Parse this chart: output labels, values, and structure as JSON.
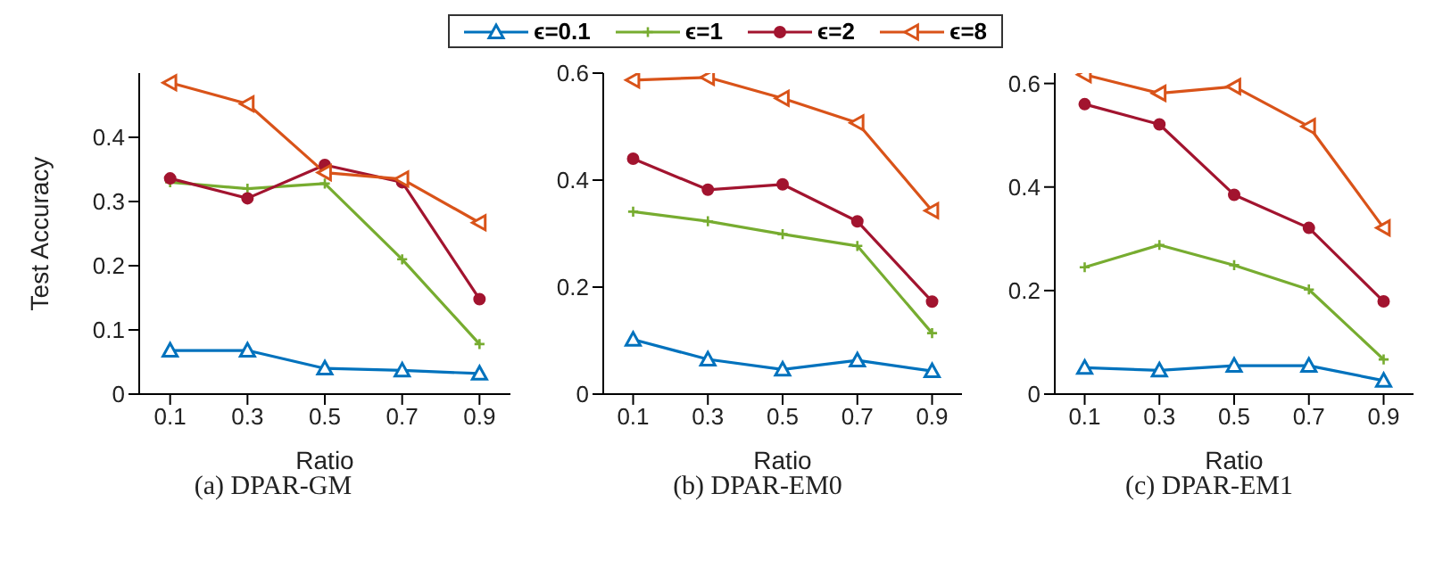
{
  "chart_data": [
    {
      "type": "line",
      "title": "(a)  DPAR-GM",
      "xlabel": "Ratio",
      "ylabel": "Test Accuracy",
      "x": [
        0.1,
        0.3,
        0.5,
        0.7,
        0.9
      ],
      "xlim": [
        0.02,
        0.98
      ],
      "xticks": [
        0.1,
        0.3,
        0.5,
        0.7,
        0.9
      ],
      "ylim": [
        0,
        0.5
      ],
      "yticks": [
        0,
        0.1,
        0.2,
        0.3,
        0.4
      ],
      "legend": "top",
      "series": [
        {
          "name": "ϵ=0.1",
          "color": "#0072bd",
          "marker": "triangle",
          "values": [
            0.068,
            0.068,
            0.04,
            0.037,
            0.032
          ]
        },
        {
          "name": "ϵ=1",
          "color": "#77ac30",
          "marker": "cross",
          "values": [
            0.33,
            0.32,
            0.328,
            0.21,
            0.078
          ]
        },
        {
          "name": "ϵ=2",
          "color": "#a2142f",
          "marker": "circle",
          "values": [
            0.336,
            0.305,
            0.357,
            0.33,
            0.148
          ]
        },
        {
          "name": "ϵ=8",
          "color": "#d95319",
          "marker": "triangle-left",
          "values": [
            0.485,
            0.452,
            0.345,
            0.335,
            0.267
          ]
        }
      ]
    },
    {
      "type": "line",
      "title": "(b)  DPAR-EM0",
      "xlabel": "Ratio",
      "x": [
        0.1,
        0.3,
        0.5,
        0.7,
        0.9
      ],
      "xlim": [
        0.02,
        0.98
      ],
      "xticks": [
        0.1,
        0.3,
        0.5,
        0.7,
        0.9
      ],
      "ylim": [
        0,
        0.6
      ],
      "yticks": [
        0,
        0.2,
        0.4,
        0.6
      ],
      "series": [
        {
          "color": "#0072bd",
          "marker": "triangle",
          "values": [
            0.102,
            0.065,
            0.046,
            0.063,
            0.043
          ]
        },
        {
          "color": "#77ac30",
          "marker": "cross",
          "values": [
            0.341,
            0.323,
            0.299,
            0.277,
            0.114
          ]
        },
        {
          "color": "#a2142f",
          "marker": "circle",
          "values": [
            0.44,
            0.382,
            0.392,
            0.323,
            0.173
          ]
        },
        {
          "color": "#d95319",
          "marker": "triangle-left",
          "values": [
            0.587,
            0.592,
            0.553,
            0.507,
            0.343
          ]
        }
      ]
    },
    {
      "type": "line",
      "title": "(c)  DPAR-EM1",
      "xlabel": "Ratio",
      "x": [
        0.1,
        0.3,
        0.5,
        0.7,
        0.9
      ],
      "xlim": [
        0.02,
        0.98
      ],
      "xticks": [
        0.1,
        0.3,
        0.5,
        0.7,
        0.9
      ],
      "ylim": [
        0,
        0.62
      ],
      "yticks": [
        0,
        0.2,
        0.4,
        0.6
      ],
      "series": [
        {
          "color": "#0072bd",
          "marker": "triangle",
          "values": [
            0.051,
            0.046,
            0.055,
            0.055,
            0.026
          ]
        },
        {
          "color": "#77ac30",
          "marker": "cross",
          "values": [
            0.245,
            0.288,
            0.249,
            0.202,
            0.067
          ]
        },
        {
          "color": "#a2142f",
          "marker": "circle",
          "values": [
            0.56,
            0.521,
            0.385,
            0.321,
            0.179
          ]
        },
        {
          "color": "#d95319",
          "marker": "triangle-left",
          "values": [
            0.617,
            0.581,
            0.594,
            0.517,
            0.321
          ]
        }
      ]
    }
  ]
}
